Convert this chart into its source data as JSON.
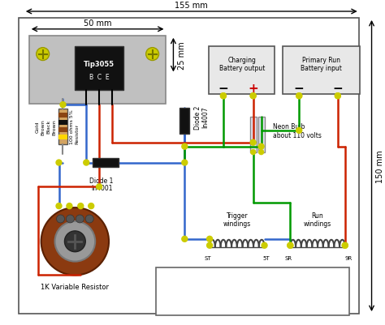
{
  "fig_width": 4.74,
  "fig_height": 4.02,
  "dpi": 100,
  "dim_155mm": "155 mm",
  "dim_50mm": "50 mm",
  "dim_25mm": "25 mm",
  "dim_150mm": "150 mm",
  "transistor_label": "Tip3055",
  "transistor_pins": "B  C  E",
  "diode1_label": "Diode 1",
  "diode1_sub": "In4001",
  "diode2_label": "Diode 2",
  "diode2_sub": "In4007",
  "neon_label": "Neon Bulb\nabout 110 volts",
  "var_resistor_label": "1K Variable Resistor",
  "charging_label": "Charging\nBattery output",
  "primary_label": "Primary Run\nBattery input",
  "trigger_label": "Trigger\nwindings",
  "run_label": "Run\nwindings",
  "resistor_side_labels": [
    "Brown",
    "Black",
    "Brown",
    "Gold"
  ],
  "resistor_label": "100 ohms 5%\nResistor",
  "color_red": "#cc2200",
  "color_blue": "#3366cc",
  "color_green": "#009900",
  "color_junction": "#cccc00",
  "color_heatsink": "#c0c0c0",
  "color_transistor": "#111111",
  "color_var_resistor_body": "#8B3A10",
  "color_diode": "#111111",
  "st_label": "ST",
  "tt_label": "5T",
  "sr_label": "SR",
  "nr_label": "9R"
}
